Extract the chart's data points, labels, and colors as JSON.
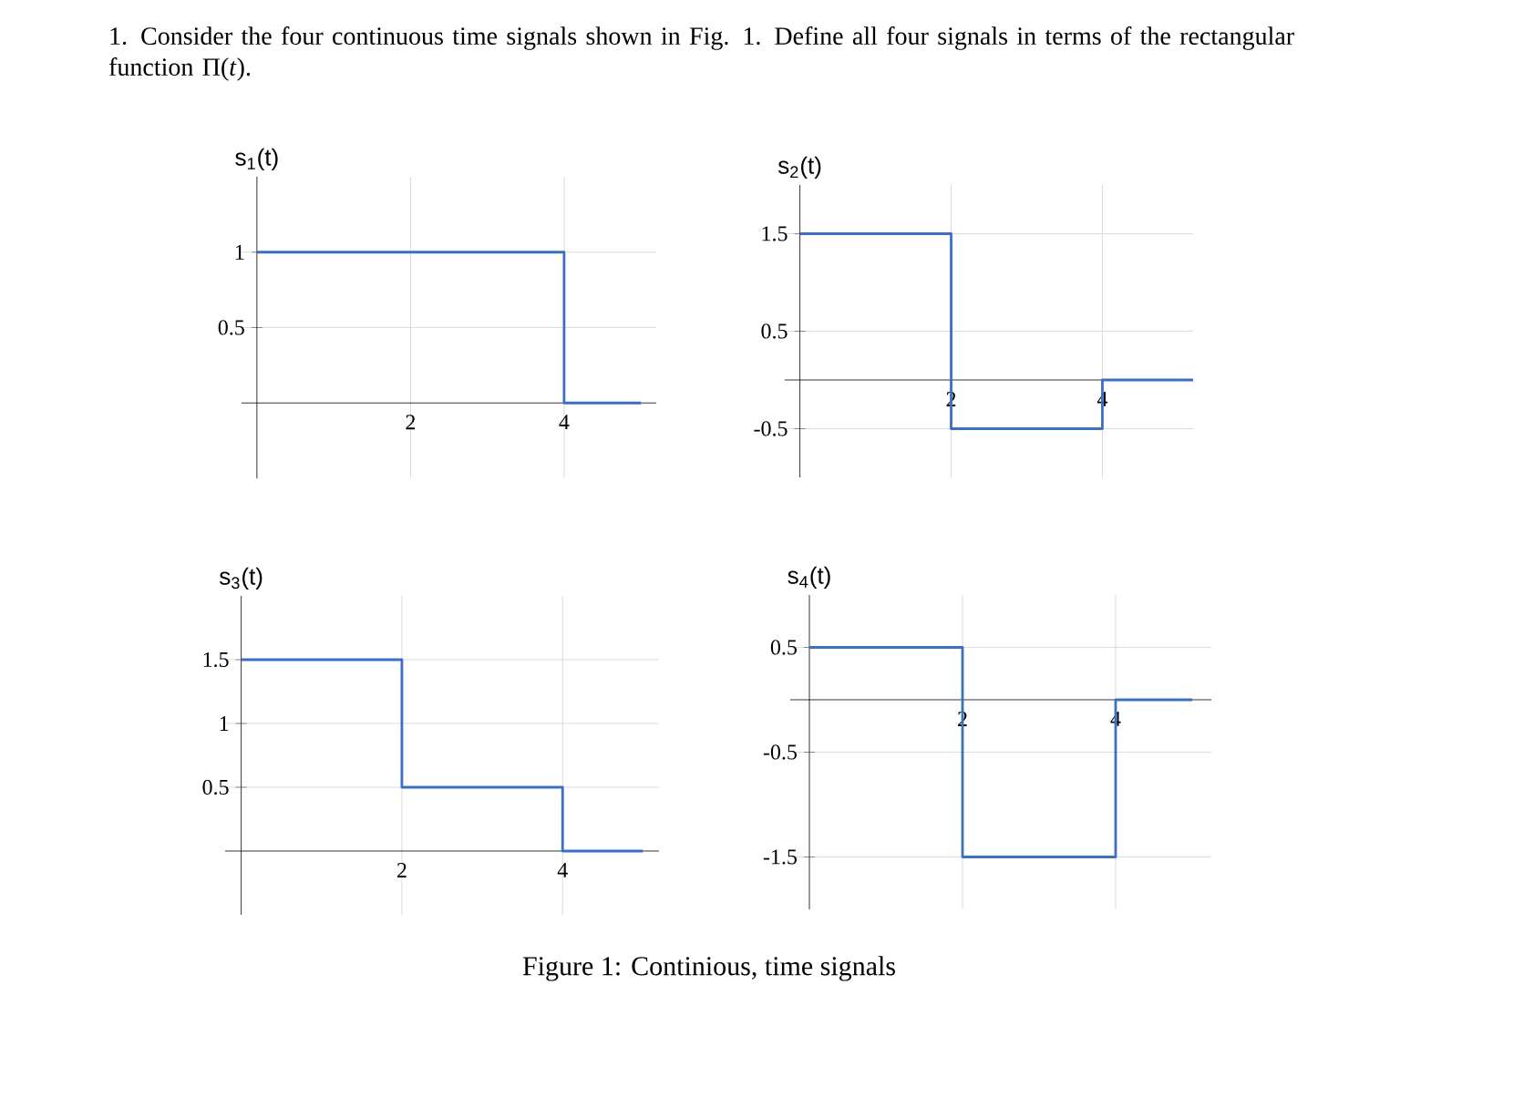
{
  "chart_data": [
    {
      "type": "line",
      "ylabel": "s$_{1}$(t)",
      "annotations": [
        "1. Consider the four continuous time signals shown in Fig. 1. Define all four signals in terms of the rectangular function Π(*t*)."
      ],
      "x": [
        0,
        4,
        4,
        5
      ],
      "values": [
        1,
        1,
        0,
        0
      ],
      "color": "#3a6fc4",
      "xlim": [
        -0.2,
        5.2
      ],
      "ylim": [
        -0.5,
        1.5
      ],
      "xticks": [
        2,
        4
      ],
      "yticks": [
        0.5,
        1
      ],
      "grid": true,
      "marker": "none"
    },
    {
      "type": "line",
      "ylabel": "s$_{2}$(t)",
      "x": [
        0,
        2,
        2,
        4,
        4,
        5.2
      ],
      "values": [
        1.5,
        1.5,
        -0.5,
        -0.5,
        0,
        0
      ],
      "color": "#3a6fc4",
      "xlim": [
        -0.2,
        5.2
      ],
      "ylim": [
        -1,
        2
      ],
      "xticks": [
        2,
        4
      ],
      "yticks": [
        -0.5,
        0.5,
        1.5
      ],
      "grid": true,
      "marker": "none"
    },
    {
      "type": "line",
      "ylabel": "s$_{3}$(t)",
      "x": [
        0,
        2,
        2,
        4,
        4,
        5
      ],
      "values": [
        1.5,
        1.5,
        0.5,
        0.5,
        0,
        0
      ],
      "color": "#3a6fc4",
      "xlim": [
        -0.2,
        5.2
      ],
      "ylim": [
        -0.5,
        2
      ],
      "xticks": [
        2,
        4
      ],
      "yticks": [
        0.5,
        1,
        1.5
      ],
      "grid": true,
      "marker": "none"
    },
    {
      "type": "line",
      "ylabel": "s$_{4}$(t)",
      "annotations": [
        "Figure 1: Continious, time signals"
      ],
      "x": [
        0,
        2,
        2,
        4,
        4,
        5
      ],
      "values": [
        0.5,
        0.5,
        -1.5,
        -1.5,
        0,
        0
      ],
      "color": "#3a6fc4",
      "xlim": [
        -0.25,
        5.25
      ],
      "ylim": [
        -2,
        1
      ],
      "xticks": [
        2,
        4
      ],
      "yticks": [
        -1.5,
        -0.5,
        0.5
      ],
      "grid": true,
      "marker": "none"
    }
  ]
}
